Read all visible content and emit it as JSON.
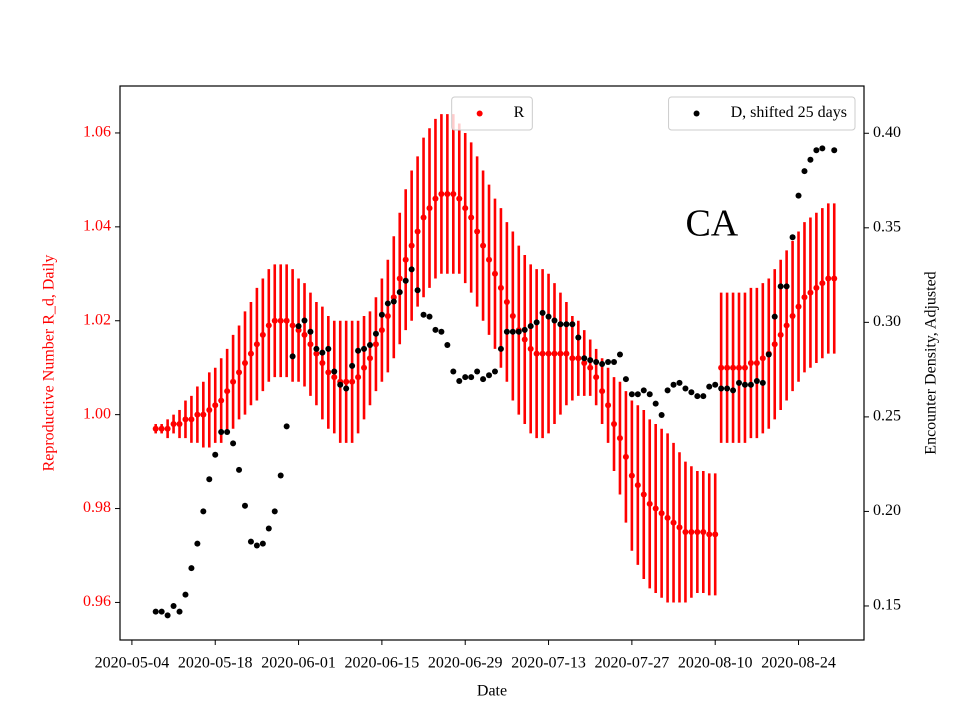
{
  "chart_data": {
    "type": "scatter",
    "xlabel": "Date",
    "ylabel": "Reproductive Number R_d, Daily",
    "y2label": "Encounter Density, Adjusted",
    "annotations": [
      {
        "text": "CA",
        "x": "2020-08-05",
        "y": 1.04
      }
    ],
    "xlim": [
      "2020-05-02",
      "2020-09-04"
    ],
    "xticks": [
      "2020-05-04",
      "2020-05-18",
      "2020-06-01",
      "2020-06-15",
      "2020-06-29",
      "2020-07-13",
      "2020-07-27",
      "2020-08-10",
      "2020-08-24"
    ],
    "ylim": [
      0.952,
      1.07
    ],
    "yticks": [
      0.96,
      0.98,
      {
        "value": 1,
        "label": "1.00"
      },
      1.02,
      1.04,
      1.06
    ],
    "y2lim": [
      0.132,
      0.425
    ],
    "y2ticks": [
      0.15,
      {
        "value": 0.2,
        "label": "0.20"
      },
      0.25,
      {
        "value": 0.3,
        "label": "0.30"
      },
      0.35,
      {
        "value": 0.4,
        "label": "0.40"
      }
    ],
    "x": [
      "2020-05-08",
      "2020-05-09",
      "2020-05-10",
      "2020-05-11",
      "2020-05-12",
      "2020-05-13",
      "2020-05-14",
      "2020-05-15",
      "2020-05-16",
      "2020-05-17",
      "2020-05-18",
      "2020-05-19",
      "2020-05-20",
      "2020-05-21",
      "2020-05-22",
      "2020-05-23",
      "2020-05-24",
      "2020-05-25",
      "2020-05-26",
      "2020-05-27",
      "2020-05-28",
      "2020-05-29",
      "2020-05-30",
      "2020-05-31",
      "2020-06-01",
      "2020-06-02",
      "2020-06-03",
      "2020-06-04",
      "2020-06-05",
      "2020-06-06",
      "2020-06-07",
      "2020-06-08",
      "2020-06-09",
      "2020-06-10",
      "2020-06-11",
      "2020-06-12",
      "2020-06-13",
      "2020-06-14",
      "2020-06-15",
      "2020-06-16",
      "2020-06-17",
      "2020-06-18",
      "2020-06-19",
      "2020-06-20",
      "2020-06-21",
      "2020-06-22",
      "2020-06-23",
      "2020-06-24",
      "2020-06-25",
      "2020-06-26",
      "2020-06-27",
      "2020-06-28",
      "2020-06-29",
      "2020-06-30",
      "2020-07-01",
      "2020-07-02",
      "2020-07-03",
      "2020-07-04",
      "2020-07-05",
      "2020-07-06",
      "2020-07-07",
      "2020-07-08",
      "2020-07-09",
      "2020-07-10",
      "2020-07-11",
      "2020-07-12",
      "2020-07-13",
      "2020-07-14",
      "2020-07-15",
      "2020-07-16",
      "2020-07-17",
      "2020-07-18",
      "2020-07-19",
      "2020-07-20",
      "2020-07-21",
      "2020-07-22",
      "2020-07-23",
      "2020-07-24",
      "2020-07-25",
      "2020-07-26",
      "2020-07-27",
      "2020-07-28",
      "2020-07-29",
      "2020-07-30",
      "2020-07-31",
      "2020-08-01",
      "2020-08-02",
      "2020-08-03",
      "2020-08-04",
      "2020-08-05",
      "2020-08-06",
      "2020-08-07",
      "2020-08-08",
      "2020-08-09",
      "2020-08-10",
      "2020-08-11",
      "2020-08-12",
      "2020-08-13",
      "2020-08-14",
      "2020-08-15",
      "2020-08-16",
      "2020-08-17",
      "2020-08-18",
      "2020-08-19",
      "2020-08-20",
      "2020-08-21",
      "2020-08-22",
      "2020-08-23",
      "2020-08-24",
      "2020-08-25",
      "2020-08-26",
      "2020-08-27",
      "2020-08-28",
      "2020-08-29",
      "2020-08-30"
    ],
    "series": [
      {
        "name": "R",
        "color": "#ff0000",
        "axis": "y",
        "legend": "upper center",
        "values": [
          0.997,
          0.997,
          0.997,
          0.998,
          0.998,
          0.999,
          0.999,
          1.0,
          1.0,
          1.001,
          1.002,
          1.003,
          1.005,
          1.007,
          1.009,
          1.011,
          1.013,
          1.015,
          1.017,
          1.019,
          1.02,
          1.02,
          1.02,
          1.019,
          1.018,
          1.017,
          1.015,
          1.013,
          1.011,
          1.009,
          1.008,
          1.007,
          1.007,
          1.007,
          1.008,
          1.01,
          1.012,
          1.015,
          1.018,
          1.021,
          1.025,
          1.029,
          1.033,
          1.036,
          1.039,
          1.042,
          1.044,
          1.046,
          1.047,
          1.047,
          1.047,
          1.046,
          1.044,
          1.042,
          1.039,
          1.036,
          1.033,
          1.03,
          1.027,
          1.024,
          1.021,
          1.018,
          1.016,
          1.014,
          1.013,
          1.013,
          1.013,
          1.013,
          1.013,
          1.013,
          1.012,
          1.012,
          1.011,
          1.01,
          1.008,
          1.005,
          1.002,
          0.998,
          0.995,
          0.991,
          0.987,
          0.985,
          0.983,
          0.981,
          0.98,
          0.979,
          0.978,
          0.977,
          0.976,
          0.975,
          0.975,
          0.975,
          0.975,
          0.9745,
          0.9745,
          1.01,
          1.01,
          1.01,
          1.01,
          1.01,
          1.011,
          1.011,
          1.012,
          1.013,
          1.015,
          1.017,
          1.019,
          1.021,
          1.023,
          1.025,
          1.026,
          1.027,
          1.028,
          1.029,
          1.029
        ],
        "errors": [
          0.001,
          0.001,
          0.002,
          0.002,
          0.003,
          0.004,
          0.005,
          0.006,
          0.007,
          0.008,
          0.008,
          0.009,
          0.009,
          0.01,
          0.01,
          0.011,
          0.011,
          0.012,
          0.012,
          0.012,
          0.012,
          0.012,
          0.012,
          0.012,
          0.011,
          0.011,
          0.011,
          0.011,
          0.012,
          0.012,
          0.012,
          0.013,
          0.013,
          0.013,
          0.012,
          0.011,
          0.01,
          0.01,
          0.011,
          0.012,
          0.013,
          0.014,
          0.015,
          0.016,
          0.016,
          0.017,
          0.017,
          0.017,
          0.017,
          0.017,
          0.017,
          0.016,
          0.016,
          0.016,
          0.016,
          0.016,
          0.016,
          0.016,
          0.017,
          0.017,
          0.018,
          0.018,
          0.018,
          0.018,
          0.018,
          0.018,
          0.017,
          0.015,
          0.013,
          0.011,
          0.009,
          0.008,
          0.007,
          0.006,
          0.006,
          0.007,
          0.008,
          0.01,
          0.012,
          0.014,
          0.016,
          0.017,
          0.018,
          0.018,
          0.018,
          0.018,
          0.018,
          0.017,
          0.016,
          0.015,
          0.014,
          0.013,
          0.013,
          0.013,
          0.013,
          0.016,
          0.016,
          0.016,
          0.016,
          0.016,
          0.016,
          0.016,
          0.016,
          0.016,
          0.016,
          0.016,
          0.016,
          0.016,
          0.016,
          0.016,
          0.016,
          0.016,
          0.016,
          0.016,
          0.016
        ]
      },
      {
        "name": "D, shifted 25 days",
        "color": "#000000",
        "axis": "y2",
        "legend": "upper right",
        "values": [
          0.147,
          0.147,
          0.145,
          0.15,
          0.147,
          0.156,
          0.17,
          0.183,
          0.2,
          0.217,
          0.23,
          0.242,
          0.242,
          0.236,
          0.222,
          0.203,
          0.184,
          0.182,
          0.183,
          0.191,
          0.2,
          0.219,
          0.245,
          0.282,
          0.298,
          0.301,
          0.295,
          0.286,
          0.284,
          0.286,
          0.274,
          0.267,
          0.265,
          0.277,
          0.285,
          0.286,
          0.288,
          0.294,
          0.304,
          0.31,
          0.311,
          0.316,
          0.322,
          0.328,
          0.317,
          0.304,
          0.303,
          0.296,
          0.295,
          0.288,
          0.274,
          0.269,
          0.271,
          0.271,
          0.274,
          0.27,
          0.272,
          0.274,
          0.286,
          0.295,
          0.295,
          0.295,
          0.296,
          0.298,
          0.3,
          0.305,
          0.303,
          0.301,
          0.299,
          0.299,
          0.299,
          0.292,
          0.281,
          0.28,
          0.279,
          0.278,
          0.279,
          0.279,
          0.283,
          0.27,
          0.262,
          0.262,
          0.264,
          0.262,
          0.257,
          0.251,
          0.264,
          0.267,
          0.268,
          0.265,
          0.263,
          0.261,
          0.261,
          0.266,
          0.267,
          0.265,
          0.265,
          0.264,
          0.268,
          0.267,
          0.267,
          0.269,
          0.268,
          0.283,
          0.303,
          0.319,
          0.319,
          0.345,
          0.367,
          0.38,
          0.386,
          0.391,
          0.392,
          null,
          0.391
        ]
      }
    ]
  }
}
